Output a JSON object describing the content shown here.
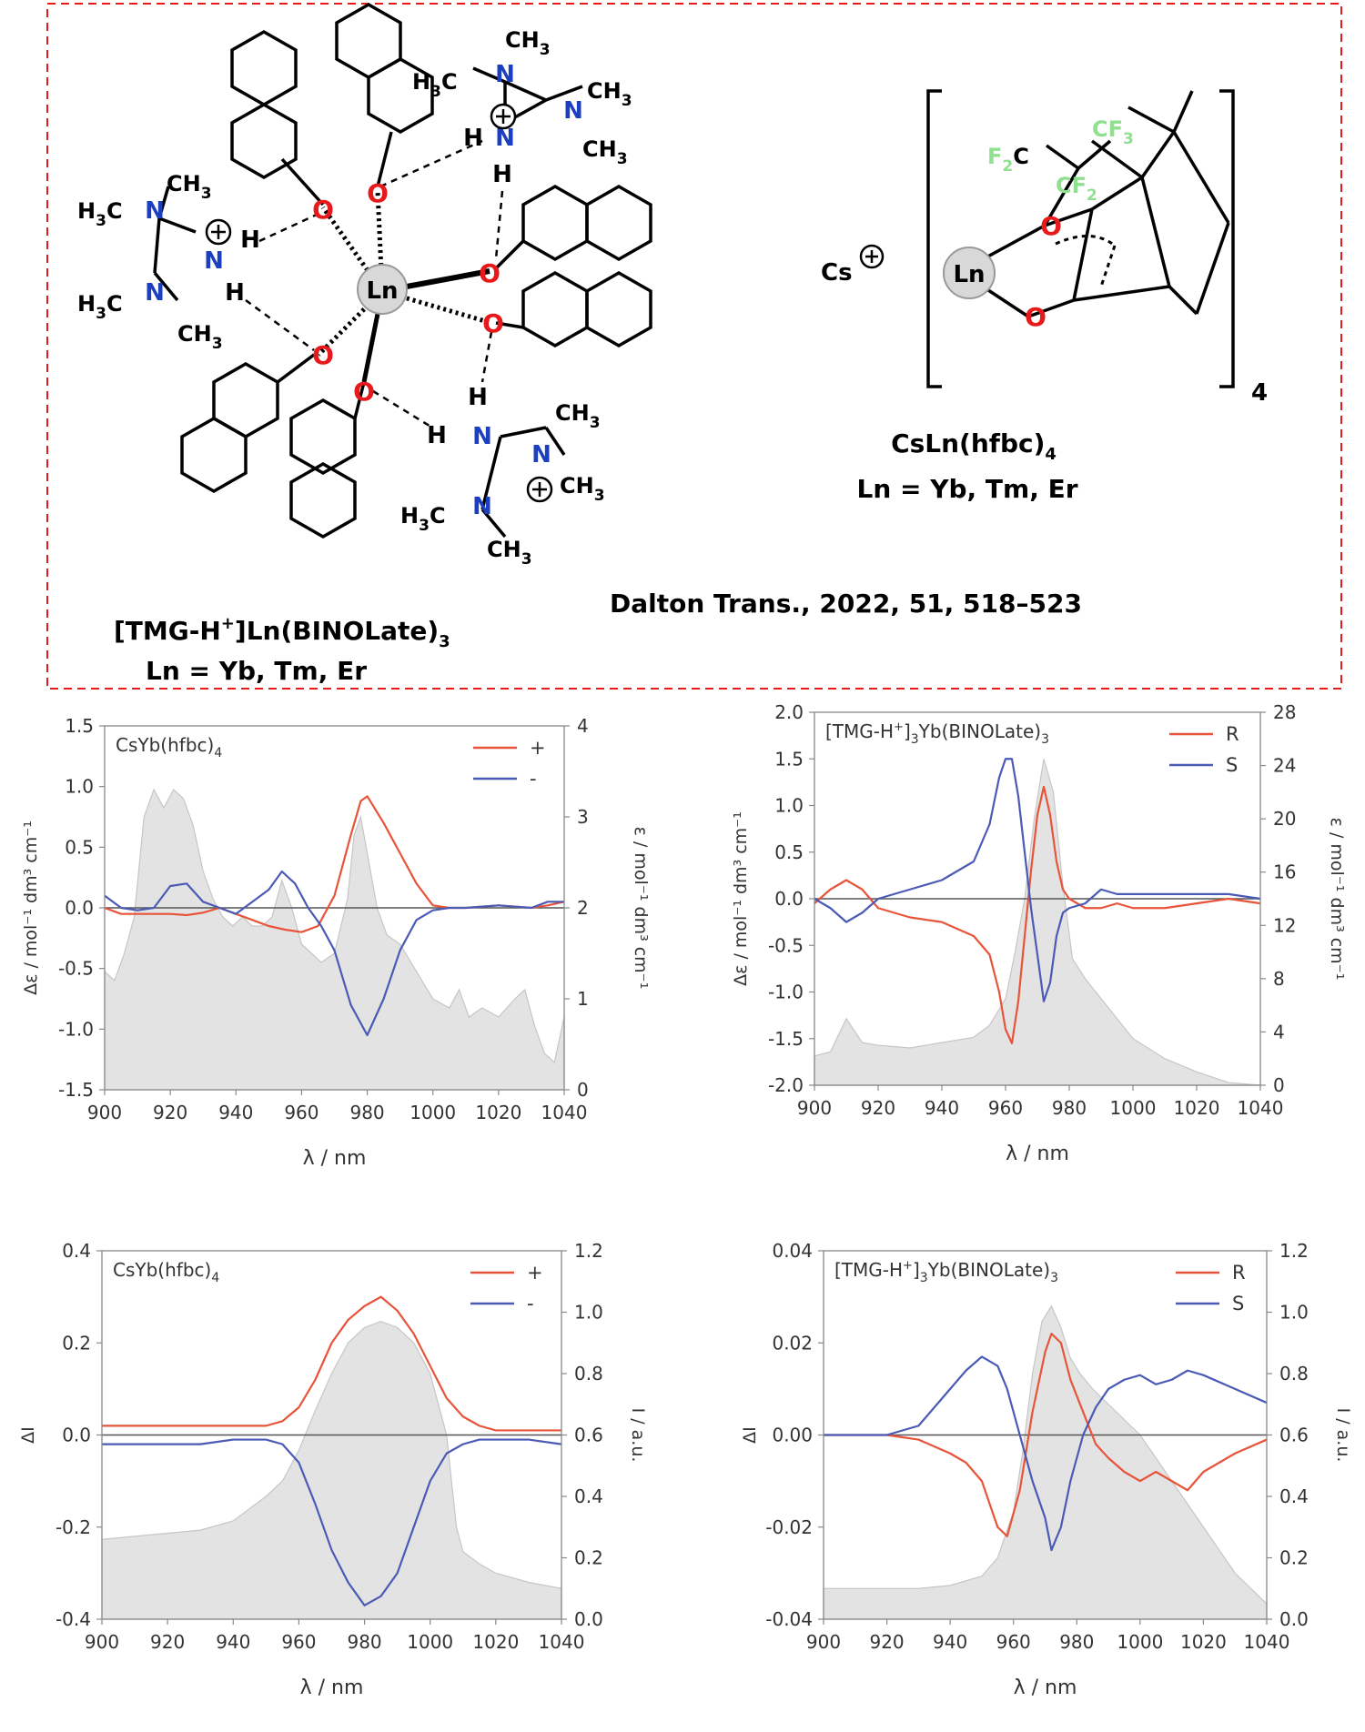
{
  "structures": {
    "citation": "Dalton Trans., 2022, 51, 518–523",
    "left": {
      "name_main": "[TMG-H",
      "name_sup": "+",
      "name_tail": "]Ln(BINOLate)",
      "name_sub": "3",
      "ln_line": "Ln = Yb, Tm, Er"
    },
    "right": {
      "name_main": "CsLn(hfbc)",
      "name_sub": "4",
      "ln_line": "Ln = Yb, Tm, Er",
      "bracket_index": "4",
      "cation": "Cs"
    },
    "atom_labels": {
      "metal": "Ln",
      "oxygen": "O",
      "nitrogen": "N",
      "hydrogen": "H",
      "methyl": "CH",
      "methyl_sub": "3",
      "h3c": "H",
      "h3c_tail": "C",
      "f2": "F",
      "f2_sub": "2",
      "f3": "F",
      "f3_sub": "3",
      "carbon": "C",
      "plus": "+"
    },
    "colors": {
      "oxygen": "#e8191b",
      "nitrogen": "#1c3fbf",
      "fluorine": "#8fe08f",
      "frame": "#e8191b"
    }
  },
  "chart_data": [
    {
      "type": "line",
      "panel": "top-left",
      "title_main": "CsYb(hfbc)",
      "title_sub": "4",
      "xlabel": "λ / nm",
      "ylabel_left": "Δε / mol⁻¹ dm³ cm⁻¹",
      "ylabel_right": "ε / mol⁻¹ dm³ cm⁻¹",
      "xlim": [
        900,
        1040
      ],
      "ylim": [
        -1.5,
        1.5
      ],
      "y2lim": [
        0,
        4
      ],
      "xticks": [
        "900",
        "920",
        "940",
        "960",
        "980",
        "1000",
        "1020",
        "1040"
      ],
      "yticks": [
        "-1.5",
        "-1.0",
        "-0.5",
        "0.0",
        "0.5",
        "1.0",
        "1.5"
      ],
      "y2ticks": [
        "0",
        "1",
        "2",
        "3",
        "4"
      ],
      "legend_position": "top-right",
      "series": [
        {
          "name": "+",
          "color": "#e8543a",
          "x": [
            900,
            905,
            910,
            915,
            920,
            925,
            930,
            935,
            940,
            945,
            950,
            955,
            960,
            965,
            970,
            975,
            978,
            980,
            985,
            990,
            995,
            1000,
            1005,
            1010,
            1020,
            1030,
            1035,
            1040
          ],
          "y": [
            0.0,
            -0.05,
            -0.05,
            -0.05,
            -0.05,
            -0.06,
            -0.04,
            0.0,
            -0.05,
            -0.1,
            -0.15,
            -0.18,
            -0.2,
            -0.15,
            0.1,
            0.6,
            0.88,
            0.92,
            0.7,
            0.45,
            0.2,
            0.02,
            0.0,
            0.0,
            0.02,
            0.0,
            0.02,
            0.05
          ]
        },
        {
          "name": "-",
          "color": "#4a5ab5",
          "x": [
            900,
            905,
            910,
            915,
            920,
            925,
            930,
            935,
            940,
            945,
            950,
            954,
            958,
            962,
            966,
            970,
            975,
            980,
            985,
            990,
            995,
            1000,
            1005,
            1010,
            1020,
            1030,
            1035,
            1040
          ],
          "y": [
            0.1,
            0.0,
            -0.02,
            0.0,
            0.18,
            0.2,
            0.05,
            0.0,
            -0.05,
            0.05,
            0.15,
            0.3,
            0.2,
            0.0,
            -0.15,
            -0.35,
            -0.8,
            -1.05,
            -0.75,
            -0.35,
            -0.1,
            -0.02,
            0.0,
            0.0,
            0.02,
            0.0,
            0.05,
            0.05
          ]
        },
        {
          "name": "ε",
          "color": "#d0d0d0",
          "axis": "right",
          "x": [
            900,
            903,
            906,
            909,
            912,
            915,
            918,
            921,
            924,
            927,
            930,
            933,
            936,
            939,
            942,
            945,
            948,
            951,
            954,
            957,
            960,
            963,
            966,
            970,
            974,
            976,
            978,
            980,
            983,
            986,
            990,
            995,
            1000,
            1005,
            1008,
            1011,
            1015,
            1020,
            1025,
            1028,
            1031,
            1034,
            1037,
            1040
          ],
          "y": [
            1.3,
            1.2,
            1.5,
            1.9,
            3.0,
            3.3,
            3.1,
            3.3,
            3.2,
            2.9,
            2.4,
            2.1,
            1.9,
            1.8,
            1.9,
            1.8,
            1.8,
            1.9,
            2.3,
            2.0,
            1.6,
            1.5,
            1.4,
            1.5,
            2.1,
            2.8,
            3.0,
            2.6,
            2.0,
            1.7,
            1.6,
            1.3,
            1.0,
            0.9,
            1.1,
            0.8,
            0.9,
            0.8,
            1.0,
            1.1,
            0.7,
            0.4,
            0.3,
            0.8
          ]
        }
      ]
    },
    {
      "type": "line",
      "panel": "top-right",
      "title_main": "[TMG-H",
      "title_sup": "+",
      "title_mid": "]",
      "title_sub": "3",
      "title_tail": "Yb(BINOLate)",
      "title_sub2": "3",
      "xlabel": "λ / nm",
      "ylabel_left": "Δε / mol⁻¹ dm³ cm⁻¹",
      "ylabel_right": "ε / mol⁻¹ dm³ cm⁻¹",
      "xlim": [
        900,
        1040
      ],
      "ylim": [
        -2.0,
        2.0
      ],
      "y2lim": [
        0,
        28
      ],
      "xticks": [
        "900",
        "920",
        "940",
        "960",
        "980",
        "1000",
        "1020",
        "1040"
      ],
      "yticks": [
        "-2.0",
        "-1.5",
        "-1.0",
        "-0.5",
        "0.0",
        "0.5",
        "1.0",
        "1.5",
        "2.0"
      ],
      "y2ticks": [
        "0",
        "4",
        "8",
        "12",
        "16",
        "20",
        "24",
        "28"
      ],
      "legend_position": "top-right",
      "series": [
        {
          "name": "R",
          "color": "#e8543a",
          "x": [
            900,
            905,
            910,
            915,
            920,
            930,
            940,
            950,
            955,
            958,
            960,
            962,
            964,
            966,
            968,
            970,
            972,
            974,
            976,
            978,
            980,
            985,
            990,
            995,
            1000,
            1010,
            1020,
            1030,
            1040
          ],
          "y": [
            -0.05,
            0.1,
            0.2,
            0.1,
            -0.1,
            -0.2,
            -0.25,
            -0.4,
            -0.6,
            -1.0,
            -1.4,
            -1.55,
            -1.1,
            -0.4,
            0.3,
            0.9,
            1.2,
            0.9,
            0.4,
            0.1,
            0.0,
            -0.1,
            -0.1,
            -0.05,
            -0.1,
            -0.1,
            -0.05,
            0.0,
            -0.05
          ]
        },
        {
          "name": "S",
          "color": "#4a5ab5",
          "x": [
            900,
            905,
            910,
            915,
            920,
            930,
            940,
            950,
            955,
            958,
            960,
            962,
            964,
            966,
            968,
            970,
            972,
            974,
            976,
            978,
            980,
            985,
            990,
            995,
            1000,
            1010,
            1020,
            1030,
            1040
          ],
          "y": [
            0.0,
            -0.1,
            -0.25,
            -0.15,
            0.0,
            0.1,
            0.2,
            0.4,
            0.8,
            1.3,
            1.5,
            1.5,
            1.1,
            0.5,
            -0.1,
            -0.6,
            -1.1,
            -0.9,
            -0.4,
            -0.15,
            -0.1,
            -0.05,
            0.1,
            0.05,
            0.05,
            0.05,
            0.05,
            0.05,
            0.0
          ]
        },
        {
          "name": "ε",
          "color": "#d0d0d0",
          "axis": "right",
          "x": [
            900,
            905,
            910,
            915,
            920,
            930,
            940,
            950,
            955,
            960,
            963,
            966,
            969,
            972,
            975,
            978,
            981,
            985,
            990,
            995,
            1000,
            1010,
            1020,
            1030,
            1040
          ],
          "y": [
            2.2,
            2.5,
            5.0,
            3.2,
            3.0,
            2.8,
            3.2,
            3.6,
            4.5,
            6.5,
            10.0,
            14.0,
            20.0,
            24.5,
            22.0,
            15.0,
            9.5,
            8.0,
            6.5,
            5.0,
            3.5,
            2.0,
            1.0,
            0.2,
            0.0
          ]
        }
      ]
    },
    {
      "type": "line",
      "panel": "bottom-left",
      "title_main": "CsYb(hfbc)",
      "title_sub": "4",
      "xlabel": "λ / nm",
      "ylabel_left": "ΔI",
      "ylabel_right": "I / a.u.",
      "xlim": [
        900,
        1040
      ],
      "ylim": [
        -0.4,
        0.4
      ],
      "y2lim": [
        0,
        1.2
      ],
      "xticks": [
        "900",
        "920",
        "940",
        "960",
        "980",
        "1000",
        "1020",
        "1040"
      ],
      "yticks": [
        "-0.4",
        "-0.2",
        "0.0",
        "0.2",
        "0.4"
      ],
      "y2ticks": [
        "0.0",
        "0.2",
        "0.4",
        "0.6",
        "0.8",
        "1.0",
        "1.2"
      ],
      "legend_position": "top-right",
      "series": [
        {
          "name": "+",
          "color": "#e8543a",
          "x": [
            900,
            910,
            920,
            930,
            940,
            950,
            955,
            960,
            965,
            970,
            975,
            980,
            985,
            990,
            995,
            1000,
            1005,
            1010,
            1015,
            1020,
            1030,
            1040
          ],
          "y": [
            0.02,
            0.02,
            0.02,
            0.02,
            0.02,
            0.02,
            0.03,
            0.06,
            0.12,
            0.2,
            0.25,
            0.28,
            0.3,
            0.27,
            0.22,
            0.15,
            0.08,
            0.04,
            0.02,
            0.01,
            0.01,
            0.01
          ]
        },
        {
          "name": "-",
          "color": "#4a5ab5",
          "x": [
            900,
            910,
            920,
            930,
            940,
            950,
            955,
            960,
            965,
            970,
            975,
            980,
            985,
            990,
            995,
            1000,
            1005,
            1010,
            1015,
            1020,
            1030,
            1040
          ],
          "y": [
            -0.02,
            -0.02,
            -0.02,
            -0.02,
            -0.01,
            -0.01,
            -0.02,
            -0.06,
            -0.15,
            -0.25,
            -0.32,
            -0.37,
            -0.35,
            -0.3,
            -0.2,
            -0.1,
            -0.04,
            -0.02,
            -0.01,
            -0.01,
            -0.01,
            -0.02
          ]
        },
        {
          "name": "I",
          "color": "#d0d0d0",
          "axis": "right",
          "x": [
            900,
            910,
            920,
            930,
            940,
            950,
            955,
            960,
            965,
            970,
            975,
            980,
            985,
            990,
            995,
            1000,
            1005,
            1008,
            1010,
            1015,
            1020,
            1030,
            1040
          ],
          "y": [
            0.26,
            0.27,
            0.28,
            0.29,
            0.32,
            0.4,
            0.45,
            0.55,
            0.68,
            0.8,
            0.9,
            0.95,
            0.97,
            0.95,
            0.9,
            0.8,
            0.6,
            0.3,
            0.22,
            0.18,
            0.15,
            0.12,
            0.1
          ]
        }
      ]
    },
    {
      "type": "line",
      "panel": "bottom-right",
      "title_main": "[TMG-H",
      "title_sup": "+",
      "title_mid": "]",
      "title_sub": "3",
      "title_tail": "Yb(BINOLate)",
      "title_sub2": "3",
      "xlabel": "λ / nm",
      "ylabel_left": "ΔI",
      "ylabel_right": "I / a.u.",
      "xlim": [
        900,
        1040
      ],
      "ylim": [
        -0.04,
        0.04
      ],
      "y2lim": [
        0,
        1.2
      ],
      "xticks": [
        "900",
        "920",
        "940",
        "960",
        "980",
        "1000",
        "1020",
        "1040"
      ],
      "yticks": [
        "-0.04",
        "-0.02",
        "0.00",
        "0.02",
        "0.04"
      ],
      "y2ticks": [
        "0.0",
        "0.2",
        "0.4",
        "0.6",
        "0.8",
        "1.0",
        "1.2"
      ],
      "legend_position": "top-right",
      "series": [
        {
          "name": "R",
          "color": "#e8543a",
          "x": [
            900,
            910,
            920,
            930,
            940,
            945,
            950,
            955,
            958,
            962,
            966,
            970,
            972,
            975,
            978,
            982,
            986,
            990,
            995,
            1000,
            1005,
            1010,
            1015,
            1020,
            1030,
            1040
          ],
          "y": [
            0.0,
            0.0,
            0.0,
            -0.001,
            -0.004,
            -0.006,
            -0.01,
            -0.02,
            -0.022,
            -0.012,
            0.005,
            0.018,
            0.022,
            0.02,
            0.012,
            0.005,
            -0.002,
            -0.005,
            -0.008,
            -0.01,
            -0.008,
            -0.01,
            -0.012,
            -0.008,
            -0.004,
            -0.001
          ]
        },
        {
          "name": "S",
          "color": "#4a5ab5",
          "x": [
            900,
            910,
            920,
            930,
            935,
            940,
            945,
            950,
            955,
            958,
            962,
            966,
            970,
            972,
            975,
            978,
            982,
            986,
            990,
            995,
            1000,
            1005,
            1010,
            1015,
            1020,
            1030,
            1040
          ],
          "y": [
            0.0,
            0.0,
            0.0,
            0.002,
            0.006,
            0.01,
            0.014,
            0.017,
            0.015,
            0.01,
            0.0,
            -0.01,
            -0.018,
            -0.025,
            -0.02,
            -0.01,
            0.0,
            0.006,
            0.01,
            0.012,
            0.013,
            0.011,
            0.012,
            0.014,
            0.013,
            0.01,
            0.007
          ]
        },
        {
          "name": "I",
          "color": "#d0d0d0",
          "axis": "right",
          "x": [
            900,
            910,
            920,
            930,
            940,
            950,
            955,
            960,
            963,
            966,
            969,
            972,
            975,
            978,
            981,
            985,
            990,
            995,
            1000,
            1010,
            1020,
            1030,
            1040
          ],
          "y": [
            0.1,
            0.1,
            0.1,
            0.1,
            0.11,
            0.14,
            0.2,
            0.35,
            0.55,
            0.8,
            0.97,
            1.02,
            0.95,
            0.85,
            0.8,
            0.75,
            0.7,
            0.65,
            0.6,
            0.45,
            0.3,
            0.15,
            0.05
          ]
        }
      ]
    }
  ]
}
